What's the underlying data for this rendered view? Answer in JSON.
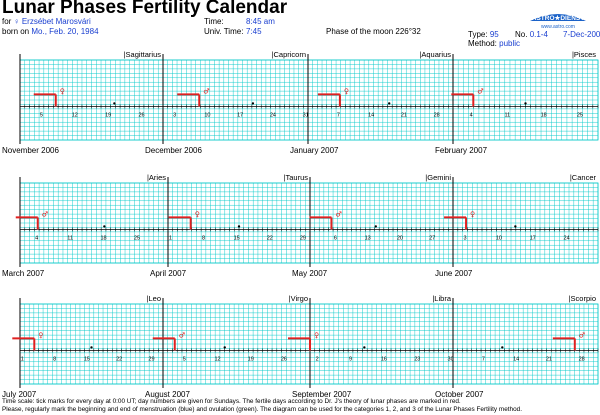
{
  "header": {
    "title": "Lunar Phases Fertility Calendar",
    "for_label": "for",
    "female_symbol": "♀",
    "name": "Erzsébet Marosvári",
    "born_label": "born on",
    "birth_date": "Mo., Feb. 20, 1984",
    "time_label": "Time:",
    "time_value": "8:45 am",
    "ut_label": "Univ. Time:",
    "ut_value": "7:45",
    "phase_text": "Phase of the moon 226°32",
    "type_label": "Type:",
    "type_value": "95",
    "no_label": "No.",
    "no_value": "0.1-4",
    "date_value": "7-Dec-2006",
    "method_label": "Method:",
    "method_value": "public",
    "logo_top": "ASTRO★DIENST",
    "logo_bottom": "www.astro.com"
  },
  "colors": {
    "grid": "#00c8c8",
    "fertile": "#e02020",
    "link": "#1a3fd0",
    "logo": "#1b62c8"
  },
  "rows": [
    {
      "months": [
        {
          "label": "November 2006",
          "days": 30,
          "ticks": [
            "5",
            "12",
            "19",
            "26"
          ]
        },
        {
          "label": "December 2006",
          "days": 31,
          "ticks": [
            "3",
            "10",
            "17",
            "24",
            "31"
          ]
        },
        {
          "label": "January 2007",
          "days": 31,
          "ticks": [
            "7",
            "14",
            "21",
            "28"
          ]
        },
        {
          "label": "February 2007",
          "days": 28,
          "ticks": [
            "4",
            "11",
            "18",
            "25"
          ]
        }
      ],
      "signs": [
        "Sagittarius",
        "Capricorn",
        "Aquarius",
        "Pisces"
      ]
    },
    {
      "months": [
        {
          "label": "March 2007",
          "days": 31,
          "ticks": [
            "4",
            "11",
            "18",
            "25"
          ]
        },
        {
          "label": "April 2007",
          "days": 30,
          "ticks": [
            "1",
            "8",
            "15",
            "22",
            "29"
          ]
        },
        {
          "label": "May 2007",
          "days": 31,
          "ticks": [
            "6",
            "13",
            "20",
            "27"
          ]
        },
        {
          "label": "June 2007",
          "days": 30,
          "ticks": [
            "3",
            "10",
            "17",
            "24"
          ]
        }
      ],
      "signs": [
        "Aries",
        "Taurus",
        "Gemini",
        "Cancer"
      ]
    },
    {
      "months": [
        {
          "label": "July 2007",
          "days": 31,
          "ticks": [
            "1",
            "8",
            "15",
            "22",
            "29"
          ]
        },
        {
          "label": "August 2007",
          "days": 31,
          "ticks": [
            "5",
            "12",
            "19",
            "26"
          ]
        },
        {
          "label": "September 2007",
          "days": 30,
          "ticks": [
            "2",
            "9",
            "16",
            "23",
            "30"
          ]
        },
        {
          "label": "October 2007",
          "days": 31,
          "ticks": [
            "7",
            "14",
            "21",
            "28"
          ]
        }
      ],
      "signs": [
        "Leo",
        "Virgo",
        "Libra",
        "Scorpio"
      ]
    }
  ],
  "footer": {
    "line1": "Time scale: tick marks for every day at 0:00 UT; day numbers are given for Sundays. The fertile days according to Dr. J's theory of lunar phases are marked in red.",
    "line2": "Please, regularly mark the beginning and end of menstruation (blue) and ovulation (green). The diagram can be used for the categories 1, 2, and 3 of the Lunar Phases Fertility method."
  }
}
